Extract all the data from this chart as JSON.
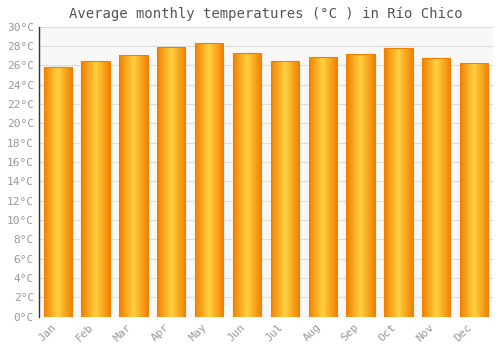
{
  "title": "Average monthly temperatures (°C ) in Río Chico",
  "months": [
    "Jan",
    "Feb",
    "Mar",
    "Apr",
    "May",
    "Jun",
    "Jul",
    "Aug",
    "Sep",
    "Oct",
    "Nov",
    "Dec"
  ],
  "values": [
    25.8,
    26.5,
    27.1,
    27.9,
    28.3,
    27.3,
    26.5,
    26.9,
    27.2,
    27.8,
    26.8,
    26.3
  ],
  "bar_color_center": "#FFD040",
  "bar_color_edge": "#F08000",
  "background_color": "#FFFFFF",
  "plot_bg_color": "#F8F8F8",
  "grid_color": "#DDDDDD",
  "ylim": [
    0,
    30
  ],
  "ytick_step": 2,
  "title_fontsize": 10,
  "tick_fontsize": 8,
  "tick_color": "#999999",
  "spine_color": "#333333"
}
